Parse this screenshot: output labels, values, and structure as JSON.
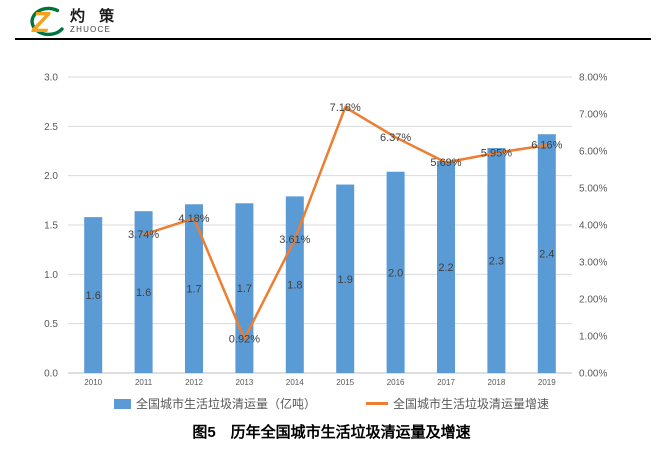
{
  "header": {
    "logo": {
      "name_cn": "灼 策",
      "name_en": "ZHUOCE",
      "orange": "#F5A11C",
      "green": "#00743F"
    }
  },
  "chart_data": {
    "type": "bar",
    "subtype": "bar+line combo, dual axis",
    "categories": [
      "2010",
      "2011",
      "2012",
      "2013",
      "2014",
      "2015",
      "2016",
      "2017",
      "2018",
      "2019"
    ],
    "series": [
      {
        "name": "全国城市生活垃圾清运量（亿吨）",
        "type": "bar",
        "axis": "left",
        "color": "#5B9BD5",
        "values": [
          1.58,
          1.64,
          1.71,
          1.72,
          1.79,
          1.91,
          2.04,
          2.15,
          2.28,
          2.42
        ],
        "labels": [
          "1.6",
          "1.6",
          "1.7",
          "1.7",
          "1.8",
          "1.9",
          "2.0",
          "2.2",
          "2.3",
          "2.4"
        ]
      },
      {
        "name": "全国城市生活垃圾清运量增速",
        "type": "line",
        "axis": "right",
        "color": "#ED7D31",
        "values": [
          null,
          3.74,
          4.18,
          0.92,
          3.61,
          7.18,
          6.37,
          5.69,
          5.95,
          6.16
        ],
        "labels": [
          "",
          "3.74%",
          "4.18%",
          "0.92%",
          "3.61%",
          "7.18%",
          "6.37%",
          "5.69%",
          "5.95%",
          "6.16%"
        ]
      }
    ],
    "left_axis": {
      "min": 0,
      "max": 3,
      "step": 0.5,
      "ticks": [
        "0.0",
        "0.5",
        "1.0",
        "1.5",
        "2.0",
        "2.5",
        "3.0"
      ]
    },
    "right_axis": {
      "min": 0,
      "max": 8,
      "step": 1,
      "ticks": [
        "0.00%",
        "1.00%",
        "2.00%",
        "3.00%",
        "4.00%",
        "5.00%",
        "6.00%",
        "7.00%",
        "8.00%"
      ]
    },
    "grid": "horizontal",
    "legend_position": "bottom",
    "colors": {
      "grid": "#D9D9D9",
      "axis_line": "#BFBFBF",
      "axis_text": "#595959",
      "data_label": "#404040",
      "legend_text": "#595959"
    }
  },
  "caption": {
    "text": "图5　历年全国城市生活垃圾清运量及增速"
  }
}
